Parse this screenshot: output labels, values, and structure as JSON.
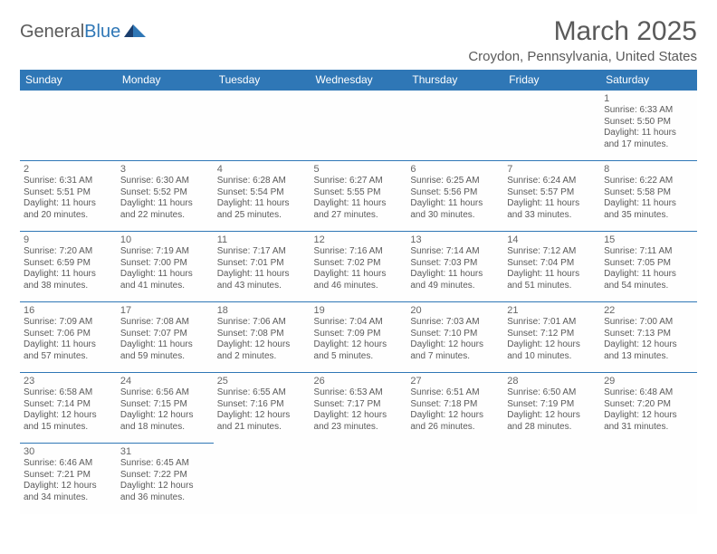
{
  "logo": {
    "text_a": "General",
    "text_b": "Blue"
  },
  "title": "March 2025",
  "subtitle": "Croydon, Pennsylvania, United States",
  "colors": {
    "header_bg": "#2f77b6",
    "border": "#2f77b6",
    "text": "#5a5a5a",
    "white": "#ffffff"
  },
  "day_headers": [
    "Sunday",
    "Monday",
    "Tuesday",
    "Wednesday",
    "Thursday",
    "Friday",
    "Saturday"
  ],
  "weeks": [
    [
      null,
      null,
      null,
      null,
      null,
      null,
      {
        "n": "1",
        "sr": "Sunrise: 6:33 AM",
        "ss": "Sunset: 5:50 PM",
        "d1": "Daylight: 11 hours",
        "d2": "and 17 minutes."
      }
    ],
    [
      {
        "n": "2",
        "sr": "Sunrise: 6:31 AM",
        "ss": "Sunset: 5:51 PM",
        "d1": "Daylight: 11 hours",
        "d2": "and 20 minutes."
      },
      {
        "n": "3",
        "sr": "Sunrise: 6:30 AM",
        "ss": "Sunset: 5:52 PM",
        "d1": "Daylight: 11 hours",
        "d2": "and 22 minutes."
      },
      {
        "n": "4",
        "sr": "Sunrise: 6:28 AM",
        "ss": "Sunset: 5:54 PM",
        "d1": "Daylight: 11 hours",
        "d2": "and 25 minutes."
      },
      {
        "n": "5",
        "sr": "Sunrise: 6:27 AM",
        "ss": "Sunset: 5:55 PM",
        "d1": "Daylight: 11 hours",
        "d2": "and 27 minutes."
      },
      {
        "n": "6",
        "sr": "Sunrise: 6:25 AM",
        "ss": "Sunset: 5:56 PM",
        "d1": "Daylight: 11 hours",
        "d2": "and 30 minutes."
      },
      {
        "n": "7",
        "sr": "Sunrise: 6:24 AM",
        "ss": "Sunset: 5:57 PM",
        "d1": "Daylight: 11 hours",
        "d2": "and 33 minutes."
      },
      {
        "n": "8",
        "sr": "Sunrise: 6:22 AM",
        "ss": "Sunset: 5:58 PM",
        "d1": "Daylight: 11 hours",
        "d2": "and 35 minutes."
      }
    ],
    [
      {
        "n": "9",
        "sr": "Sunrise: 7:20 AM",
        "ss": "Sunset: 6:59 PM",
        "d1": "Daylight: 11 hours",
        "d2": "and 38 minutes."
      },
      {
        "n": "10",
        "sr": "Sunrise: 7:19 AM",
        "ss": "Sunset: 7:00 PM",
        "d1": "Daylight: 11 hours",
        "d2": "and 41 minutes."
      },
      {
        "n": "11",
        "sr": "Sunrise: 7:17 AM",
        "ss": "Sunset: 7:01 PM",
        "d1": "Daylight: 11 hours",
        "d2": "and 43 minutes."
      },
      {
        "n": "12",
        "sr": "Sunrise: 7:16 AM",
        "ss": "Sunset: 7:02 PM",
        "d1": "Daylight: 11 hours",
        "d2": "and 46 minutes."
      },
      {
        "n": "13",
        "sr": "Sunrise: 7:14 AM",
        "ss": "Sunset: 7:03 PM",
        "d1": "Daylight: 11 hours",
        "d2": "and 49 minutes."
      },
      {
        "n": "14",
        "sr": "Sunrise: 7:12 AM",
        "ss": "Sunset: 7:04 PM",
        "d1": "Daylight: 11 hours",
        "d2": "and 51 minutes."
      },
      {
        "n": "15",
        "sr": "Sunrise: 7:11 AM",
        "ss": "Sunset: 7:05 PM",
        "d1": "Daylight: 11 hours",
        "d2": "and 54 minutes."
      }
    ],
    [
      {
        "n": "16",
        "sr": "Sunrise: 7:09 AM",
        "ss": "Sunset: 7:06 PM",
        "d1": "Daylight: 11 hours",
        "d2": "and 57 minutes."
      },
      {
        "n": "17",
        "sr": "Sunrise: 7:08 AM",
        "ss": "Sunset: 7:07 PM",
        "d1": "Daylight: 11 hours",
        "d2": "and 59 minutes."
      },
      {
        "n": "18",
        "sr": "Sunrise: 7:06 AM",
        "ss": "Sunset: 7:08 PM",
        "d1": "Daylight: 12 hours",
        "d2": "and 2 minutes."
      },
      {
        "n": "19",
        "sr": "Sunrise: 7:04 AM",
        "ss": "Sunset: 7:09 PM",
        "d1": "Daylight: 12 hours",
        "d2": "and 5 minutes."
      },
      {
        "n": "20",
        "sr": "Sunrise: 7:03 AM",
        "ss": "Sunset: 7:10 PM",
        "d1": "Daylight: 12 hours",
        "d2": "and 7 minutes."
      },
      {
        "n": "21",
        "sr": "Sunrise: 7:01 AM",
        "ss": "Sunset: 7:12 PM",
        "d1": "Daylight: 12 hours",
        "d2": "and 10 minutes."
      },
      {
        "n": "22",
        "sr": "Sunrise: 7:00 AM",
        "ss": "Sunset: 7:13 PM",
        "d1": "Daylight: 12 hours",
        "d2": "and 13 minutes."
      }
    ],
    [
      {
        "n": "23",
        "sr": "Sunrise: 6:58 AM",
        "ss": "Sunset: 7:14 PM",
        "d1": "Daylight: 12 hours",
        "d2": "and 15 minutes."
      },
      {
        "n": "24",
        "sr": "Sunrise: 6:56 AM",
        "ss": "Sunset: 7:15 PM",
        "d1": "Daylight: 12 hours",
        "d2": "and 18 minutes."
      },
      {
        "n": "25",
        "sr": "Sunrise: 6:55 AM",
        "ss": "Sunset: 7:16 PM",
        "d1": "Daylight: 12 hours",
        "d2": "and 21 minutes."
      },
      {
        "n": "26",
        "sr": "Sunrise: 6:53 AM",
        "ss": "Sunset: 7:17 PM",
        "d1": "Daylight: 12 hours",
        "d2": "and 23 minutes."
      },
      {
        "n": "27",
        "sr": "Sunrise: 6:51 AM",
        "ss": "Sunset: 7:18 PM",
        "d1": "Daylight: 12 hours",
        "d2": "and 26 minutes."
      },
      {
        "n": "28",
        "sr": "Sunrise: 6:50 AM",
        "ss": "Sunset: 7:19 PM",
        "d1": "Daylight: 12 hours",
        "d2": "and 28 minutes."
      },
      {
        "n": "29",
        "sr": "Sunrise: 6:48 AM",
        "ss": "Sunset: 7:20 PM",
        "d1": "Daylight: 12 hours",
        "d2": "and 31 minutes."
      }
    ],
    [
      {
        "n": "30",
        "sr": "Sunrise: 6:46 AM",
        "ss": "Sunset: 7:21 PM",
        "d1": "Daylight: 12 hours",
        "d2": "and 34 minutes."
      },
      {
        "n": "31",
        "sr": "Sunrise: 6:45 AM",
        "ss": "Sunset: 7:22 PM",
        "d1": "Daylight: 12 hours",
        "d2": "and 36 minutes."
      },
      null,
      null,
      null,
      null,
      null
    ]
  ]
}
